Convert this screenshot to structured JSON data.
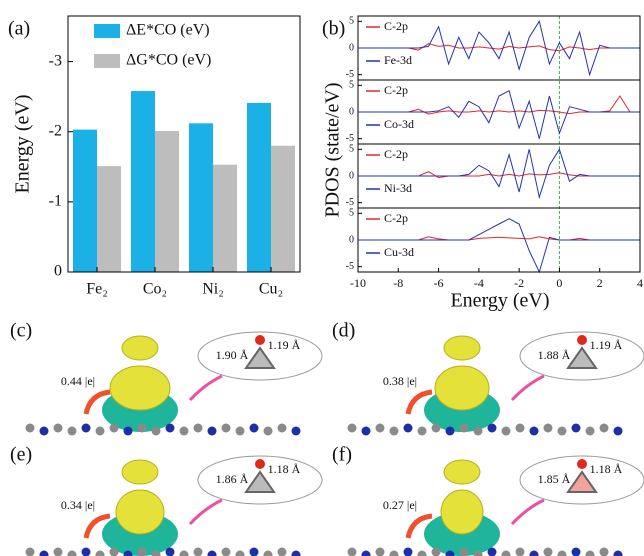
{
  "chart_data": [
    {
      "type": "bar",
      "label": "(a)",
      "ylabel": "Energy (eV)",
      "categories": [
        "Fe₂",
        "Co₂",
        "Ni₂",
        "Cu₂"
      ],
      "series": [
        {
          "name": "ΔE*CO (eV)",
          "color": "#1bb0e6",
          "values": [
            -2.03,
            -2.58,
            -2.12,
            -2.41
          ]
        },
        {
          "name": "ΔG*CO (eV)",
          "color": "#bdbdbd",
          "values": [
            -1.51,
            -2.01,
            -1.53,
            -1.8
          ]
        }
      ],
      "ylim": [
        0,
        -3.65
      ],
      "yticks": [
        0,
        -1,
        -2,
        -3
      ]
    },
    {
      "type": "stacked-line",
      "label": "(b)",
      "ylabel": "PDOS (state/eV)",
      "xlabel": "Energy (eV)",
      "x": [
        -10,
        -9.5,
        -9,
        -8.5,
        -8,
        -7.5,
        -7,
        -6.5,
        -6,
        -5.5,
        -5,
        -4.5,
        -4,
        -3.5,
        -3,
        -2.5,
        -2,
        -1.5,
        -1,
        -0.5,
        0,
        0.5,
        1,
        1.5,
        2,
        2.5,
        3,
        3.5,
        4
      ],
      "xlim": [
        -10,
        4
      ],
      "xticks": [
        -10,
        -8,
        -6,
        -4,
        -2,
        0,
        2,
        4
      ],
      "ylim": [
        -6,
        6
      ],
      "yticks": [
        -5,
        0,
        5
      ],
      "panels": [
        {
          "series": [
            {
              "name": "C-2p",
              "color": "#e8262a",
              "values": [
                0,
                0,
                0,
                0,
                0,
                0,
                -0.4,
                0.8,
                0.3,
                0.5,
                0,
                0,
                0.2,
                0,
                -0.2,
                0.3,
                0,
                0.2,
                0.4,
                -0.3,
                -0.5,
                0.2,
                0,
                -0.3,
                0,
                0,
                0,
                0,
                0
              ]
            },
            {
              "name": "Fe-3d",
              "color": "#2433b0",
              "values": [
                0,
                0,
                0,
                0,
                0,
                0,
                0,
                0.3,
                4,
                -3,
                2,
                -2,
                3,
                1,
                -2,
                3,
                -4,
                2,
                5,
                -3,
                1,
                -2,
                3,
                -5,
                0.5,
                0,
                0,
                0,
                0
              ]
            }
          ]
        },
        {
          "series": [
            {
              "name": "C-2p",
              "color": "#e8262a",
              "values": [
                0,
                0,
                0,
                0,
                0,
                0,
                0.5,
                -0.4,
                0,
                0.2,
                0,
                0,
                0.2,
                0,
                0.2,
                0,
                0.2,
                0,
                0.3,
                0.2,
                0,
                -0.3,
                0,
                0,
                0,
                0.2,
                3,
                0,
                0
              ]
            },
            {
              "name": "Co-3d",
              "color": "#2433b0",
              "values": [
                0,
                0,
                0,
                0,
                0,
                0,
                0,
                0,
                0.2,
                1,
                -1,
                2,
                1,
                -2,
                3,
                4,
                -3,
                2,
                -5,
                3,
                -4,
                1,
                0.5,
                0,
                0,
                0,
                0,
                0,
                0
              ]
            }
          ]
        },
        {
          "series": [
            {
              "name": "C-2p",
              "color": "#e8262a",
              "values": [
                0,
                0,
                0,
                0,
                0,
                0,
                0,
                0.8,
                -0.3,
                0,
                0,
                0,
                0,
                0.3,
                0,
                0.3,
                0,
                0.4,
                0.2,
                0.3,
                0.6,
                0.2,
                0,
                0,
                0,
                0,
                0,
                0,
                0
              ]
            },
            {
              "name": "Ni-3d",
              "color": "#2433b0",
              "values": [
                0,
                0,
                0,
                0,
                0,
                0,
                0,
                0,
                0,
                0,
                0,
                0.3,
                2,
                1,
                -2,
                4,
                -3,
                5,
                -4,
                2,
                5,
                -1,
                0.3,
                0,
                0,
                0,
                0,
                0,
                0
              ]
            }
          ]
        },
        {
          "series": [
            {
              "name": "C-2p",
              "color": "#e8262a",
              "values": [
                0,
                0,
                0,
                0,
                0,
                0,
                0,
                0.6,
                0.2,
                0,
                0,
                0,
                0.3,
                0.4,
                0.5,
                0.4,
                0.3,
                0.2,
                0.6,
                0.2,
                0,
                0,
                0.3,
                0,
                0,
                0,
                0,
                0,
                0
              ]
            },
            {
              "name": "Cu-3d",
              "color": "#2433b0",
              "values": [
                0,
                0,
                0,
                0,
                0,
                0,
                0,
                0,
                0,
                0,
                0,
                0,
                1,
                2,
                3,
                4,
                3,
                -2,
                -6,
                0.5,
                0,
                0,
                0,
                0,
                0,
                0,
                0,
                0,
                0
              ]
            }
          ]
        }
      ]
    }
  ],
  "structures": [
    {
      "label": "(c)",
      "charge": "0.44 |e|",
      "d1": "1.90 Å",
      "d2": "1.19 Å"
    },
    {
      "label": "(d)",
      "charge": "0.38 |e|",
      "d1": "1.88 Å",
      "d2": "1.19 Å"
    },
    {
      "label": "(e)",
      "charge": "0.34 |e|",
      "d1": "1.86 Å",
      "d2": "1.18 Å"
    },
    {
      "label": "(f)",
      "charge": "0.27 |e|",
      "d1": "1.85 Å",
      "d2": "1.18 Å"
    }
  ]
}
